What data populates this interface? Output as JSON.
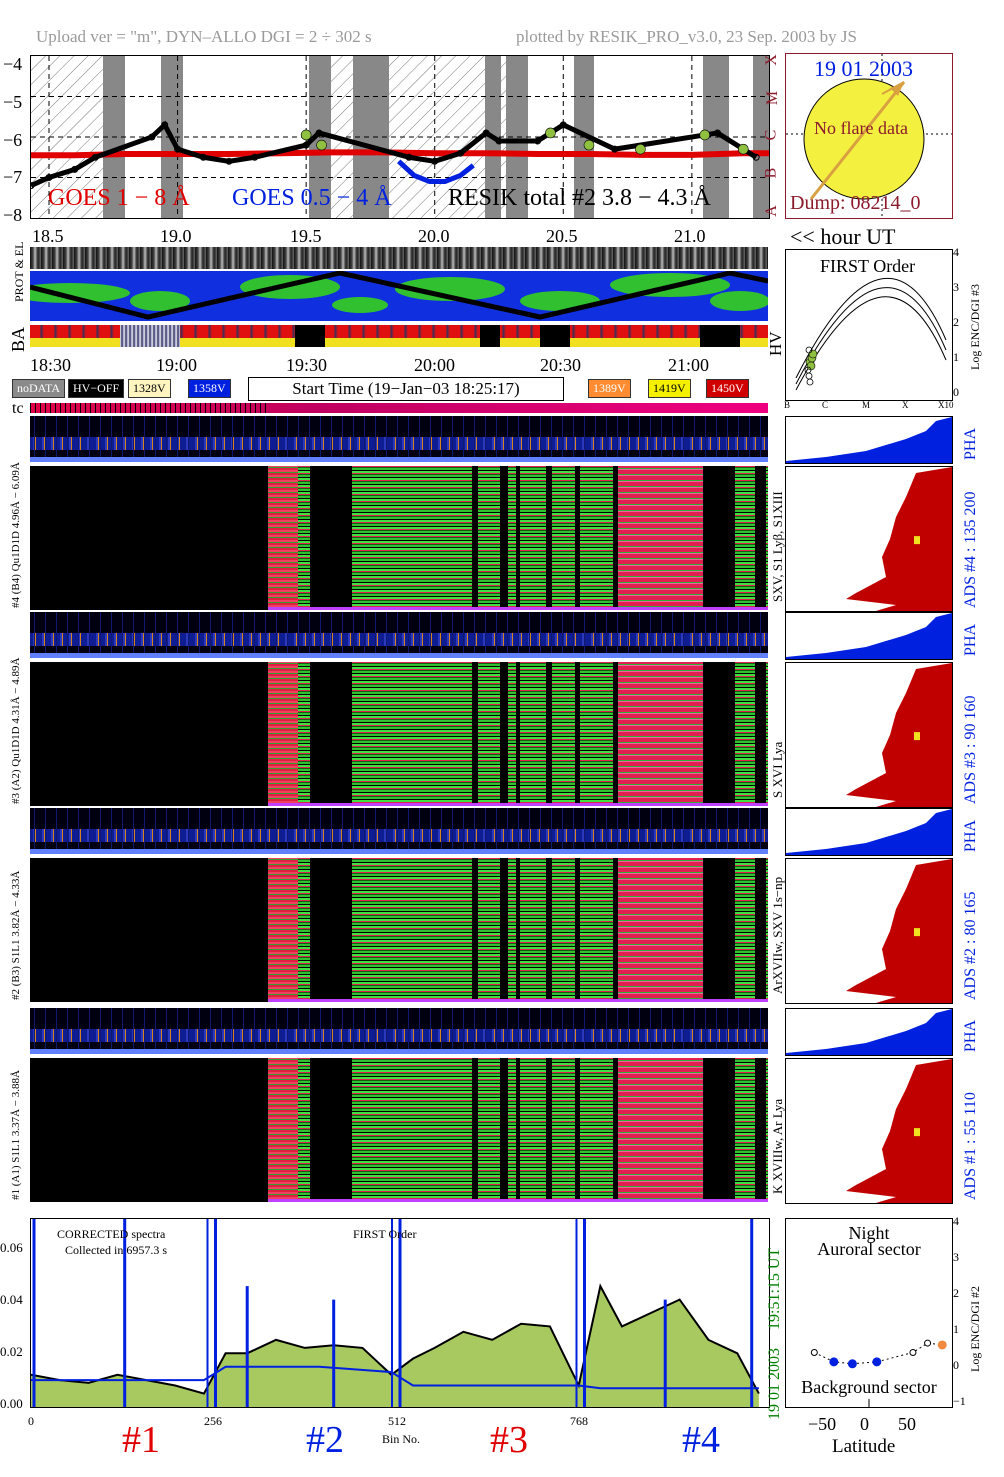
{
  "header": {
    "left": "Upload ver = \"m\", DYN–ALLO DGI =   2 ÷ 302 s",
    "right": "plotted by RESIK_PRO_v3.0, 23 Sep. 2003 by JS"
  },
  "goes": {
    "y_ticks": [
      "−4",
      "−5",
      "−6",
      "−7",
      "−8"
    ],
    "class_letters": [
      "X",
      "M",
      "C",
      "B",
      "A"
    ],
    "label_red": "GOES 1 − 8 Å",
    "label_blue": "GOES 0.5 − 4 Å",
    "label_black": "RESIK total #2  3.8 − 4.3 Å",
    "x_ticks": [
      "18.5",
      "19.0",
      "19.5",
      "20.0",
      "20.5",
      "21.0"
    ],
    "x_caption": "<< hour UT"
  },
  "sun": {
    "date": "19 01 2003",
    "status": "No flare data",
    "dump": "Dump: 08214_0"
  },
  "orbit": {
    "label_prot": "PROT & EL",
    "label_ba": "BA",
    "label_hv": "HV"
  },
  "time_axis": {
    "ticks": [
      "18:30",
      "19:00",
      "19:30",
      "20:00",
      "20:30",
      "21:00"
    ]
  },
  "status_legend": {
    "nodata": "noDATA",
    "hvoff": "HV−OFF",
    "v1328": "1328V",
    "v1358": "1358V",
    "start_time": "Start Time (19−Jan−03 18:25:17)",
    "v1389": "1389V",
    "v1419": "1419V",
    "v1450": "1450V",
    "colors": {
      "nodata": "#8a8a8a",
      "hvoff": "#000000",
      "v1328": "#fff5c0",
      "v1358": "#0020e0",
      "v1389": "#ff8c30",
      "v1419": "#f4f000",
      "v1450": "#d00000"
    }
  },
  "first_order": {
    "title": "FIRST Order",
    "ylabel": "Log ENC/DGI #3",
    "y_ticks": [
      "4",
      "3",
      "2",
      "1",
      "0"
    ],
    "x_ticks": [
      "B",
      "C",
      "M",
      "X",
      "X10"
    ]
  },
  "channels": [
    {
      "pha_label": "#4 (B4) Qu1D1D 4.96Å − 6.09Å",
      "line_label": "SXV, S1 Lyβ, S1XIII",
      "ads": "ADS #4 :   135 200",
      "pha_word": "PHA"
    },
    {
      "pha_label": "#3 (A2) Qu1D1D 4.31Å − 4.89Å",
      "line_label": "S XVI Lya",
      "ads": "ADS #3 :    90 160",
      "pha_word": "PHA"
    },
    {
      "pha_label": "#2 (B3) S1L1 3.82Å − 4.33Å",
      "line_label": "ArXVIIw, SXV 1s−np",
      "ads": "ADS #2 :    80 165",
      "pha_word": "PHA"
    },
    {
      "pha_label": "#1 (A1) S1L1 3.37Å − 3.88Å",
      "line_label": "K XVIIIw, Ar Lya",
      "ads": "ADS #1 :    55 110",
      "pha_word": "PHA"
    }
  ],
  "spectrum": {
    "title_left_1": "CORRECTED spectra",
    "title_left_2": "Collected in  6957.3 s",
    "title_mid": "FIRST Order",
    "y_ticks": [
      "0.06",
      "0.04",
      "0.02",
      "0.00"
    ],
    "x_ticks": [
      "0",
      "256",
      "512",
      "768"
    ],
    "xlabel": "Bin No.",
    "side_time": "19:51:15 UT",
    "side_date": "19 01 2003",
    "channel_labels": [
      "#1",
      "#2",
      "#3",
      "#4"
    ]
  },
  "latitude": {
    "title_1": "Night",
    "title_2": "Auroral sector",
    "bottom": "Background sector",
    "xlabel": "Latitude",
    "x_ticks": [
      "−50",
      "0",
      "50"
    ],
    "ylabel": "Log ENC/DGI #2",
    "y_ticks": [
      "4",
      "3",
      "2",
      "1",
      "0",
      "−1"
    ]
  },
  "chart_data": [
    {
      "type": "line",
      "title": "",
      "xlabel": "hour UT",
      "ylabel": "",
      "xlim": [
        18.43,
        21.3
      ],
      "ylim": [
        -8,
        -4
      ],
      "series": [
        {
          "name": "GOES 1 − 8 Å",
          "color": "#e00000",
          "x": [
            18.43,
            18.6,
            18.8,
            19.0,
            19.2,
            19.4,
            19.6,
            19.8,
            20.0,
            20.2,
            20.4,
            20.6,
            20.8,
            21.0,
            21.2,
            21.3
          ],
          "y": [
            -6.45,
            -6.45,
            -6.42,
            -6.42,
            -6.42,
            -6.4,
            -6.38,
            -6.38,
            -6.4,
            -6.4,
            -6.42,
            -6.42,
            -6.44,
            -6.44,
            -6.4,
            -6.4
          ]
        },
        {
          "name": "GOES 0.5 − 4 Å",
          "color": "#0020e0",
          "x": [
            19.86,
            19.92,
            19.98,
            20.04,
            20.1,
            20.15
          ],
          "y": [
            -6.6,
            -6.95,
            -7.1,
            -7.1,
            -6.95,
            -6.7
          ]
        },
        {
          "name": "RESIK total #2  3.8 − 4.3 Å",
          "color": "#000000",
          "x": [
            18.43,
            18.5,
            18.6,
            18.68,
            18.9,
            18.95,
            19.0,
            19.1,
            19.2,
            19.3,
            19.5,
            19.55,
            19.9,
            20.0,
            20.1,
            20.2,
            20.25,
            20.4,
            20.5,
            20.7,
            21.1,
            21.25
          ],
          "y": [
            -7.2,
            -7.0,
            -6.8,
            -6.5,
            -6.0,
            -5.7,
            -6.3,
            -6.5,
            -6.6,
            -6.5,
            -6.2,
            -5.9,
            -6.5,
            -6.6,
            -6.4,
            -5.9,
            -6.1,
            -6.1,
            -5.7,
            -6.3,
            -5.9,
            -6.5
          ]
        }
      ]
    },
    {
      "type": "line",
      "title": "",
      "xlabel": "Bin No.",
      "ylabel": "",
      "xlim": [
        0,
        1024
      ],
      "ylim": [
        0,
        0.07
      ],
      "x_ticks": [
        0,
        256,
        512,
        768
      ],
      "series": [
        {
          "name": "",
          "color": "#000000",
          "x": [
            0,
            40,
            80,
            120,
            160,
            200,
            240,
            270,
            300,
            340,
            380,
            420,
            460,
            500,
            530,
            560,
            600,
            640,
            680,
            720,
            760,
            790,
            820,
            860,
            900,
            940,
            980,
            1010
          ],
          "y": [
            0.012,
            0.01,
            0.009,
            0.012,
            0.01,
            0.008,
            0.005,
            0.02,
            0.02,
            0.025,
            0.022,
            0.023,
            0.022,
            0.012,
            0.018,
            0.022,
            0.028,
            0.025,
            0.031,
            0.03,
            0.008,
            0.045,
            0.03,
            0.035,
            0.04,
            0.025,
            0.02,
            0.005
          ]
        },
        {
          "name": "",
          "color": "#0020e0",
          "x": [
            0,
            120,
            240,
            270,
            400,
            500,
            530,
            700,
            760,
            790,
            900,
            1010
          ],
          "y": [
            0.01,
            0.01,
            0.01,
            0.015,
            0.015,
            0.013,
            0.008,
            0.008,
            0.008,
            0.007,
            0.007,
            0.007
          ]
        }
      ]
    },
    {
      "type": "scatter",
      "title": "",
      "xlabel": "Latitude",
      "ylabel": "Log ENC/DGI #2",
      "xlim": [
        -85,
        85
      ],
      "ylim": [
        -1,
        4
      ],
      "x_ticks": [
        -50,
        0,
        50
      ],
      "series": [
        {
          "name": "",
          "color": "#0020e0",
          "x": [
            -36,
            -17,
            8
          ],
          "y": [
            0.2,
            0.15,
            0.2
          ]
        },
        {
          "name": "",
          "color": "#000000",
          "x": [
            -56,
            45,
            60
          ],
          "y": [
            0.45,
            0.45,
            0.7
          ]
        },
        {
          "name": "",
          "color": "#f08a40",
          "x": [
            75
          ],
          "y": [
            0.65
          ]
        }
      ]
    }
  ]
}
